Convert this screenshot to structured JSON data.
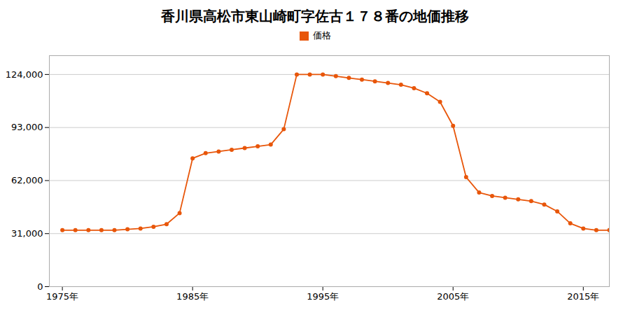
{
  "chart_data": {
    "type": "line",
    "title": "香川県高松市東山崎町字佐古１７８番の地価推移",
    "x": [
      1975,
      1976,
      1977,
      1978,
      1979,
      1980,
      1981,
      1982,
      1983,
      1984,
      1985,
      1986,
      1987,
      1988,
      1989,
      1990,
      1991,
      1992,
      1993,
      1994,
      1995,
      1996,
      1997,
      1998,
      1999,
      2000,
      2001,
      2002,
      2003,
      2004,
      2005,
      2006,
      2007,
      2008,
      2009,
      2010,
      2011,
      2012,
      2013,
      2014,
      2015,
      2016,
      2017
    ],
    "series": [
      {
        "name": "価格",
        "color": "#E8560A",
        "marker": "circle",
        "values": [
          33000,
          33000,
          33000,
          33000,
          33000,
          33500,
          34000,
          35000,
          36500,
          43000,
          75000,
          78000,
          79000,
          80000,
          81000,
          82000,
          83000,
          92000,
          124000,
          124000,
          124000,
          123000,
          122000,
          121000,
          120000,
          119000,
          118000,
          116000,
          113000,
          108000,
          94000,
          64000,
          55000,
          53000,
          52000,
          51000,
          50000,
          48000,
          44000,
          37000,
          34000,
          33000,
          33000
        ]
      }
    ],
    "xlim": [
      1974,
      2017
    ],
    "xticks": [
      {
        "value": 1975,
        "label": "1975年"
      },
      {
        "value": 1985,
        "label": "1985年"
      },
      {
        "value": 1995,
        "label": "1995年"
      },
      {
        "value": 2005,
        "label": "2005年"
      },
      {
        "value": 2015,
        "label": "2015年"
      }
    ],
    "ylim": [
      0,
      135000
    ],
    "yticks": [
      0,
      {
        "value": 31000,
        "label": "31,000"
      },
      {
        "value": 62000,
        "label": "62,000"
      },
      {
        "value": 93000,
        "label": "93,000"
      },
      {
        "value": 124000,
        "label": "124,000"
      }
    ],
    "grid": true,
    "legend": "top"
  }
}
